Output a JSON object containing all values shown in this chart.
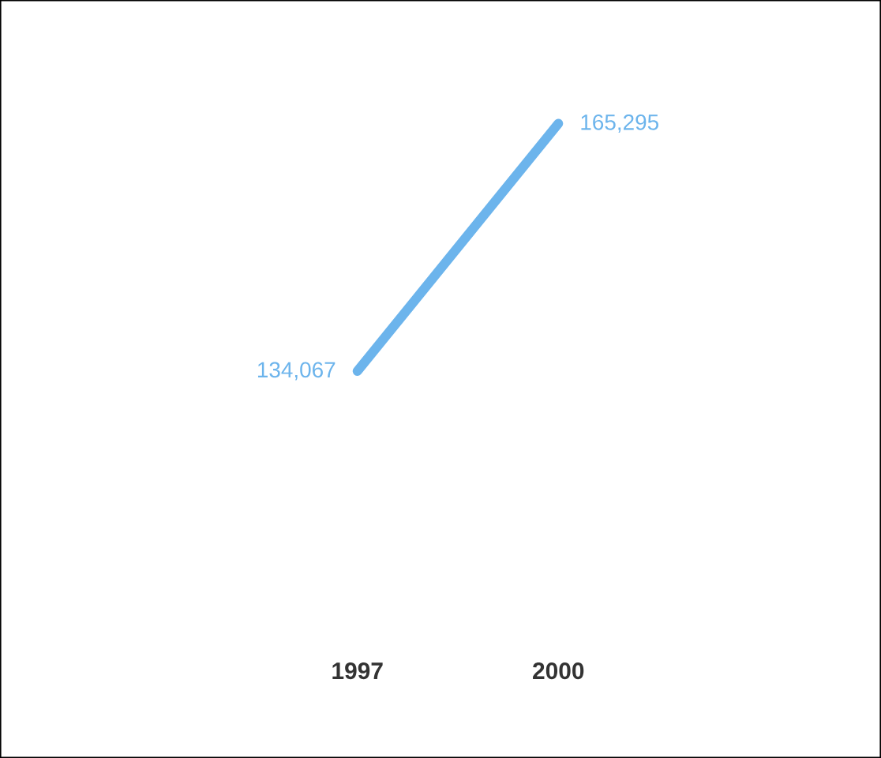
{
  "chart_data": {
    "type": "line",
    "categories": [
      "1997",
      "2000"
    ],
    "series": [
      {
        "color": "#6cb4ec",
        "values": [
          134067,
          165295
        ],
        "value_labels": [
          "134,067",
          "165,295"
        ]
      }
    ],
    "data_labels": false
  }
}
